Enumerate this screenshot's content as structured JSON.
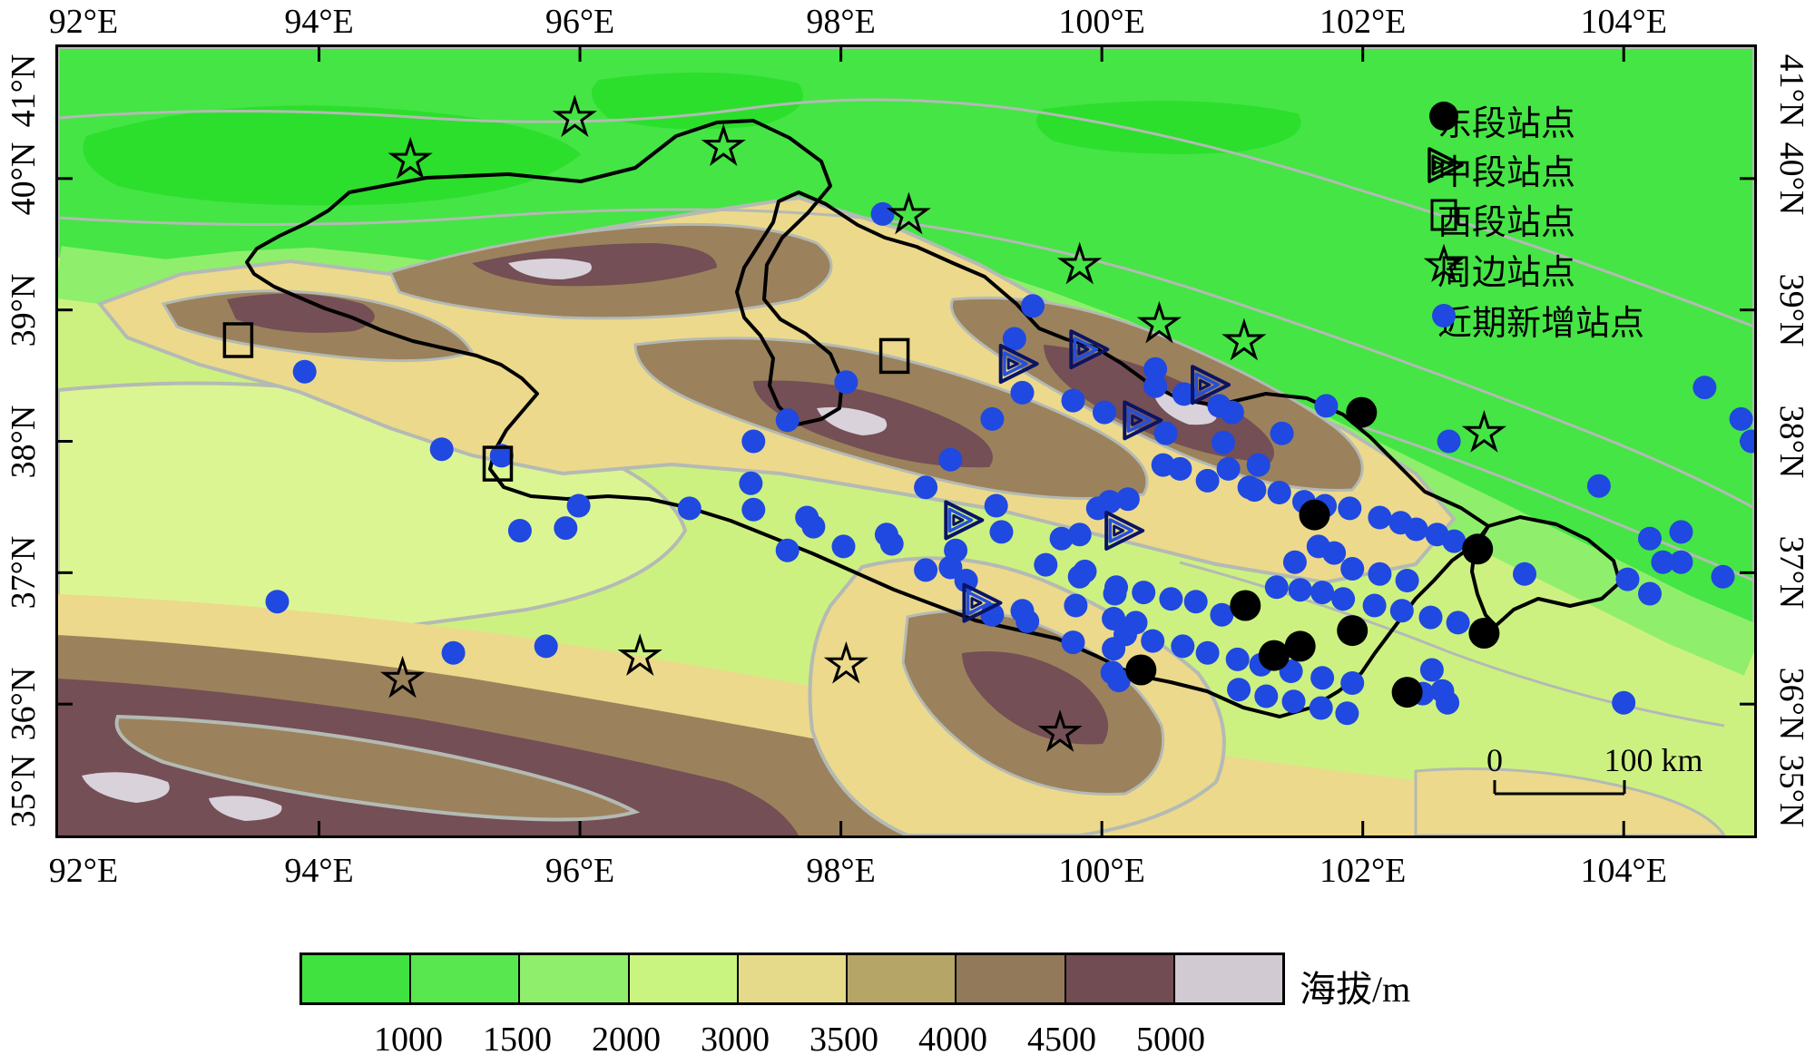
{
  "figure": {
    "type": "station-map",
    "region_note": "terrain map with station symbols",
    "extent": {
      "lon_min": 92,
      "lon_max": 105,
      "lat_min": 35,
      "lat_max": 41
    }
  },
  "axis": {
    "lon_ticks": [
      {
        "v": 92,
        "label": "92°E"
      },
      {
        "v": 94,
        "label": "94°E"
      },
      {
        "v": 96,
        "label": "96°E"
      },
      {
        "v": 98,
        "label": "98°E"
      },
      {
        "v": 100,
        "label": "100°E"
      },
      {
        "v": 102,
        "label": "102°E"
      },
      {
        "v": 104,
        "label": "104°E"
      }
    ],
    "lat_ticks": [
      {
        "v": 41,
        "label": "41°N"
      },
      {
        "v": 40,
        "label": "40°N"
      },
      {
        "v": 39,
        "label": "39°N"
      },
      {
        "v": 38,
        "label": "38°N"
      },
      {
        "v": 37,
        "label": "37°N"
      },
      {
        "v": 36,
        "label": "36°N"
      },
      {
        "v": 35,
        "label": "35°N"
      }
    ]
  },
  "legend": {
    "items": [
      {
        "symbol": "black-circle",
        "label": "东段站点"
      },
      {
        "symbol": "double-triangle",
        "label": "中段站点"
      },
      {
        "symbol": "open-square",
        "label": "西段站点"
      },
      {
        "symbol": "open-star",
        "label": "周边站点"
      },
      {
        "symbol": "blue-dot",
        "label": "近期新增站点"
      }
    ]
  },
  "scalebar": {
    "zero_label": "0",
    "distance_label": "100 km"
  },
  "colorbar": {
    "title": "海拔/m",
    "tick_labels": [
      "1000",
      "1500",
      "2000",
      "3000",
      "3500",
      "4000",
      "4500",
      "5000"
    ],
    "colors": [
      "#3fe23f",
      "#58e74e",
      "#8fee6b",
      "#c9f47f",
      "#e5d98a",
      "#b5a668",
      "#91795a",
      "#714c52",
      "#d2cad2"
    ]
  },
  "palette": {
    "station_blue": "#1f49e0",
    "station_black": "#000000",
    "triangle_outline": "#0a1464",
    "triangle_inner": "#2450d8",
    "contour_gray": "#b4bab4",
    "terrain_green": "#45e545",
    "terrain_green_dark": "#2cdf2c",
    "terrain_green_light": "#8fef6c",
    "terrain_pale": "#cdf180",
    "terrain_pale_light": "#dcf593",
    "terrain_tan": "#ecd98c",
    "terrain_brown": "#9b825c",
    "terrain_maroon": "#744f55",
    "terrain_gray": "#d9d2da"
  },
  "stations": {
    "east_black_circles": [
      [
        101.99,
        38.22
      ],
      [
        101.63,
        37.44
      ],
      [
        102.88,
        37.18
      ],
      [
        101.1,
        36.75
      ],
      [
        101.92,
        36.56
      ],
      [
        101.52,
        36.44
      ],
      [
        101.32,
        36.37
      ],
      [
        102.93,
        36.54
      ],
      [
        100.3,
        36.26
      ],
      [
        102.34,
        36.09
      ]
    ],
    "middle_triangles": [
      [
        99.35,
        38.59
      ],
      [
        99.89,
        38.7
      ],
      [
        100.3,
        38.16
      ],
      [
        100.82,
        38.43
      ],
      [
        98.93,
        37.4
      ],
      [
        100.16,
        37.32
      ],
      [
        99.07,
        36.77
      ]
    ],
    "west_squares": [
      [
        93.38,
        38.77
      ],
      [
        95.37,
        37.83
      ],
      [
        98.41,
        38.65
      ]
    ],
    "surrounding_stars": [
      [
        94.7,
        40.14
      ],
      [
        95.96,
        40.46
      ],
      [
        97.1,
        40.24
      ],
      [
        98.52,
        39.72
      ],
      [
        99.83,
        39.34
      ],
      [
        100.44,
        38.89
      ],
      [
        101.09,
        38.76
      ],
      [
        102.93,
        38.06
      ],
      [
        94.64,
        36.19
      ],
      [
        96.46,
        36.36
      ],
      [
        98.04,
        36.3
      ],
      [
        99.68,
        35.78
      ]
    ],
    "new_blue_dots": [
      [
        93.89,
        38.53
      ],
      [
        94.94,
        37.94
      ],
      [
        95.4,
        37.89
      ],
      [
        95.54,
        37.32
      ],
      [
        95.89,
        37.34
      ],
      [
        95.99,
        37.51
      ],
      [
        96.84,
        37.49
      ],
      [
        93.68,
        36.78
      ],
      [
        95.03,
        36.39
      ],
      [
        95.74,
        36.44
      ],
      [
        98.04,
        38.45
      ],
      [
        98.32,
        39.73
      ],
      [
        97.59,
        38.16
      ],
      [
        97.33,
        38.0
      ],
      [
        97.31,
        37.68
      ],
      [
        97.33,
        37.48
      ],
      [
        97.74,
        37.42
      ],
      [
        97.79,
        37.35
      ],
      [
        97.59,
        37.17
      ],
      [
        98.02,
        37.2
      ],
      [
        98.35,
        37.29
      ],
      [
        98.39,
        37.22
      ],
      [
        98.65,
        37.65
      ],
      [
        98.84,
        37.86
      ],
      [
        98.88,
        37.17
      ],
      [
        98.84,
        37.04
      ],
      [
        99.16,
        38.17
      ],
      [
        99.19,
        37.51
      ],
      [
        99.23,
        37.31
      ],
      [
        98.65,
        37.02
      ],
      [
        98.96,
        36.94
      ],
      [
        99.16,
        36.68
      ],
      [
        99.39,
        36.71
      ],
      [
        99.43,
        36.63
      ],
      [
        99.57,
        37.06
      ],
      [
        99.83,
        36.97
      ],
      [
        99.8,
        36.75
      ],
      [
        100.1,
        36.84
      ],
      [
        100.09,
        36.65
      ],
      [
        100.26,
        36.62
      ],
      [
        99.78,
        36.47
      ],
      [
        100.09,
        36.42
      ],
      [
        100.08,
        36.24
      ],
      [
        100.13,
        36.18
      ],
      [
        99.47,
        39.03
      ],
      [
        99.33,
        38.78
      ],
      [
        99.39,
        38.37
      ],
      [
        99.78,
        38.31
      ],
      [
        100.02,
        38.22
      ],
      [
        100.41,
        38.55
      ],
      [
        100.41,
        38.42
      ],
      [
        100.63,
        38.36
      ],
      [
        100.9,
        38.27
      ],
      [
        101.0,
        38.22
      ],
      [
        101.38,
        38.06
      ],
      [
        101.72,
        38.27
      ],
      [
        100.49,
        38.06
      ],
      [
        100.93,
        37.99
      ],
      [
        100.47,
        37.82
      ],
      [
        100.6,
        37.79
      ],
      [
        100.81,
        37.7
      ],
      [
        100.97,
        37.79
      ],
      [
        101.2,
        37.82
      ],
      [
        101.13,
        37.65
      ],
      [
        101.17,
        37.63
      ],
      [
        101.36,
        37.61
      ],
      [
        101.55,
        37.54
      ],
      [
        101.71,
        37.51
      ],
      [
        101.9,
        37.49
      ],
      [
        102.13,
        37.42
      ],
      [
        102.29,
        37.38
      ],
      [
        102.41,
        37.33
      ],
      [
        102.57,
        37.29
      ],
      [
        102.7,
        37.24
      ],
      [
        100.2,
        37.56
      ],
      [
        100.06,
        37.54
      ],
      [
        99.97,
        37.49
      ],
      [
        99.83,
        37.29
      ],
      [
        99.69,
        37.26
      ],
      [
        99.87,
        37.01
      ],
      [
        100.11,
        36.89
      ],
      [
        100.32,
        36.85
      ],
      [
        100.53,
        36.8
      ],
      [
        100.72,
        36.78
      ],
      [
        100.92,
        36.68
      ],
      [
        101.34,
        36.89
      ],
      [
        101.52,
        36.87
      ],
      [
        101.69,
        36.85
      ],
      [
        101.85,
        36.8
      ],
      [
        102.09,
        36.75
      ],
      [
        102.3,
        36.71
      ],
      [
        102.52,
        36.66
      ],
      [
        102.73,
        36.62
      ],
      [
        101.66,
        37.2
      ],
      [
        101.78,
        37.15
      ],
      [
        101.48,
        37.08
      ],
      [
        101.92,
        37.03
      ],
      [
        102.13,
        36.99
      ],
      [
        102.34,
        36.94
      ],
      [
        100.18,
        36.53
      ],
      [
        100.39,
        36.48
      ],
      [
        100.62,
        36.44
      ],
      [
        100.81,
        36.39
      ],
      [
        101.04,
        36.34
      ],
      [
        101.22,
        36.3
      ],
      [
        101.45,
        36.25
      ],
      [
        101.69,
        36.2
      ],
      [
        101.92,
        36.16
      ],
      [
        101.05,
        36.11
      ],
      [
        101.26,
        36.06
      ],
      [
        101.47,
        36.02
      ],
      [
        101.68,
        35.97
      ],
      [
        101.88,
        35.93
      ],
      [
        102.66,
        38.0
      ],
      [
        103.81,
        37.66
      ],
      [
        104.2,
        37.26
      ],
      [
        104.44,
        37.31
      ],
      [
        104.3,
        37.08
      ],
      [
        104.44,
        37.08
      ],
      [
        104.03,
        36.95
      ],
      [
        104.2,
        36.84
      ],
      [
        103.24,
        36.99
      ],
      [
        104.76,
        36.97
      ],
      [
        102.53,
        36.26
      ],
      [
        102.46,
        36.08
      ],
      [
        102.61,
        36.1
      ],
      [
        102.65,
        36.01
      ],
      [
        104.0,
        36.01
      ],
      [
        104.62,
        38.41
      ],
      [
        104.9,
        38.17
      ],
      [
        104.98,
        38.0
      ]
    ]
  }
}
